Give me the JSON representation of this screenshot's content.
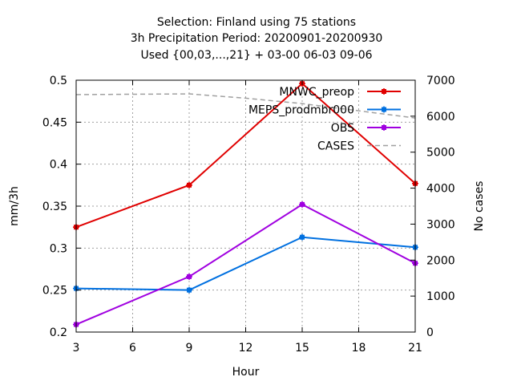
{
  "chart_data": {
    "type": "line",
    "title": [
      "Selection: Finland using    75 stations",
      "3h Precipitation   Period: 20200901-20200930",
      "Used {00,03,...,21} + 03-00 06-03 09-06"
    ],
    "xlabel": "Hour",
    "ylabel": "mm/3h",
    "y2label": "No cases",
    "xlim": [
      3,
      21
    ],
    "ylim": [
      0.2,
      0.5
    ],
    "y2lim": [
      0,
      7000
    ],
    "xticks": [
      "3",
      "6",
      "9",
      "12",
      "15",
      "18",
      "21"
    ],
    "yticks": [
      "0.2",
      "0.25",
      "0.3",
      "0.35",
      "0.4",
      "0.45",
      "0.5"
    ],
    "y2ticks": [
      "0",
      "1000",
      "2000",
      "3000",
      "4000",
      "5000",
      "6000",
      "7000"
    ],
    "grid": true,
    "legend": "top-right",
    "series": [
      {
        "name": "MNWC_preop",
        "color": "#e00000",
        "axis": "y",
        "x": [
          3,
          9,
          15,
          21
        ],
        "values": [
          0.325,
          0.375,
          0.496,
          0.377
        ]
      },
      {
        "name": "MEPS_prodmbr000",
        "color": "#0070e0",
        "axis": "y",
        "x": [
          3,
          9,
          15,
          21
        ],
        "values": [
          0.252,
          0.25,
          0.313,
          0.301
        ]
      },
      {
        "name": "OBS",
        "color": "#a000e0",
        "axis": "y",
        "x": [
          3,
          9,
          15,
          21
        ],
        "values": [
          0.209,
          0.266,
          0.352,
          0.282
        ]
      },
      {
        "name": "CASES",
        "color": "#a0a0a0",
        "axis": "y2",
        "dashed": true,
        "x": [
          3,
          9,
          12,
          15,
          21
        ],
        "values": [
          6600,
          6620,
          6500,
          6350,
          5950
        ]
      }
    ]
  }
}
